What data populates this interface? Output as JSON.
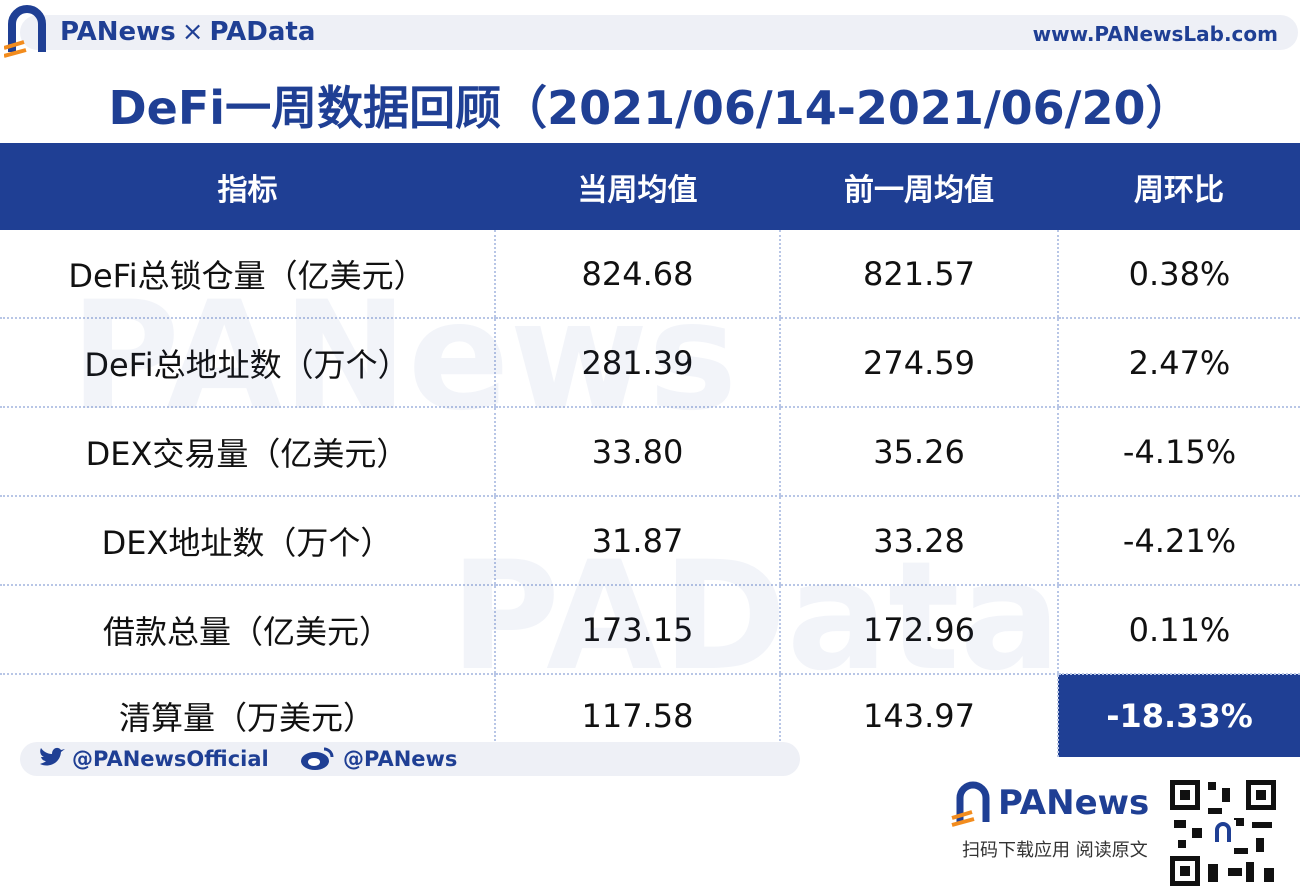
{
  "header": {
    "brand_left": "PANews",
    "separator": "×",
    "brand_right": "PAData",
    "url": "www.PANewsLab.com"
  },
  "title": "DeFi一周数据回顾（2021/06/14-2021/06/20）",
  "watermarks": [
    "PANews",
    "PAData"
  ],
  "table": {
    "columns": [
      "指标",
      "当周均值",
      "前一周均值",
      "周环比"
    ],
    "rows": [
      [
        "DeFi总锁仓量（亿美元）",
        "824.68",
        "821.57",
        "0.38%"
      ],
      [
        "DeFi总地址数（万个）",
        "281.39",
        "274.59",
        "2.47%"
      ],
      [
        "DEX交易量（亿美元）",
        "33.80",
        "35.26",
        "-4.15%"
      ],
      [
        "DEX地址数（万个）",
        "31.87",
        "33.28",
        "-4.21%"
      ],
      [
        "借款总量（亿美元）",
        "173.15",
        "172.96",
        "0.11%"
      ],
      [
        "清算量（万美元）",
        "117.58",
        "143.97",
        "-18.33%"
      ]
    ]
  },
  "footer": {
    "twitter": "@PANewsOfficial",
    "weibo": "@PANews",
    "brand": "PANews",
    "qr_caption": "扫码下载应用  阅读原文"
  }
}
